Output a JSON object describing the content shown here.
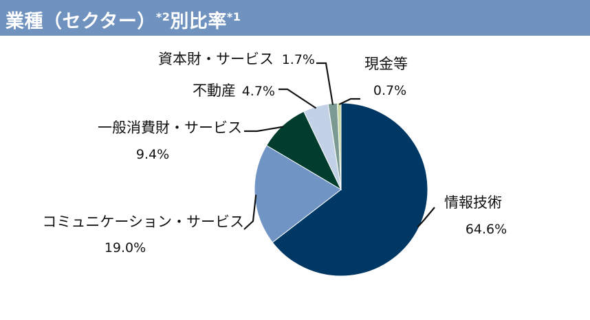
{
  "header": {
    "title_main": "業種（セクター）",
    "title_note1": "*2",
    "title_middle": "別比率",
    "title_note2": "*1"
  },
  "chart_data": {
    "type": "pie",
    "title": "業種（セクター）*2別比率*1",
    "start_angle_deg": 0,
    "direction": "clockwise",
    "slices": [
      {
        "name": "情報技術",
        "value": 64.6,
        "label": "64.6%",
        "color": "#003865"
      },
      {
        "name": "コミュニケーション・サービス",
        "value": 19.0,
        "label": "19.0%",
        "color": "#7094c4"
      },
      {
        "name": "一般消費財・サービス",
        "value": 9.4,
        "label": "9.4%",
        "color": "#003d2e"
      },
      {
        "name": "不動産",
        "value": 4.7,
        "label": "4.7%",
        "color": "#c3d1e6"
      },
      {
        "name": "資本財・サービス",
        "value": 1.7,
        "label": "1.7%",
        "color": "#7b9a92"
      },
      {
        "name": "現金等",
        "value": 0.7,
        "label": "0.7%",
        "color": "#c9d9a1"
      }
    ]
  }
}
